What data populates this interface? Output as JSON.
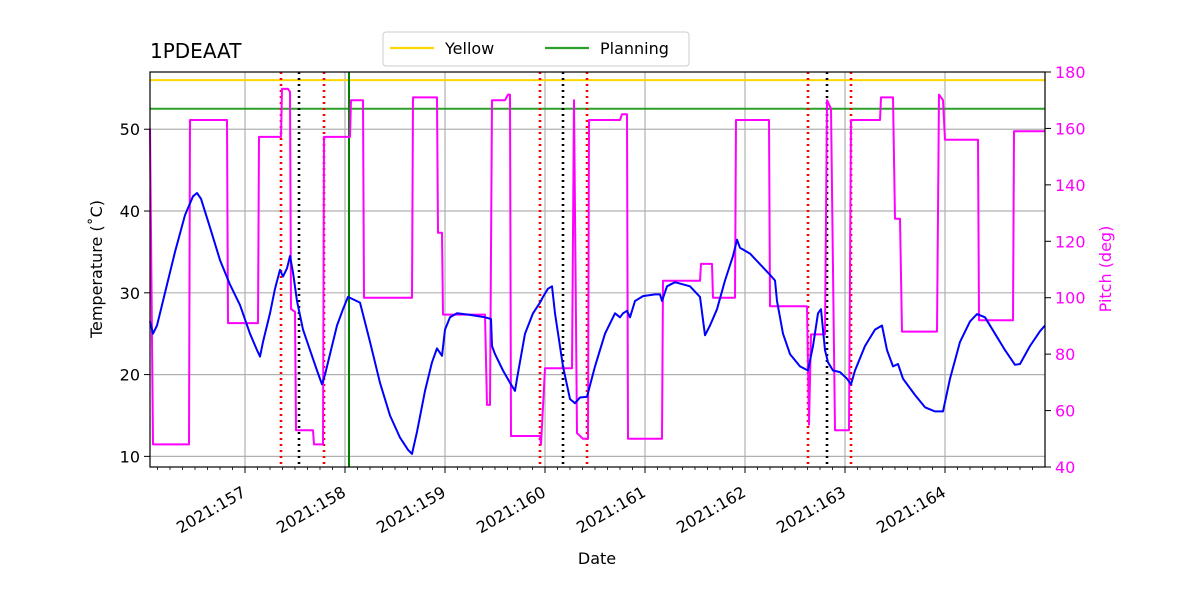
{
  "chart_data": {
    "type": "line",
    "title": "1PDEAAT",
    "xlabel": "Date",
    "ylabel_left": "Temperature ($^\\circ$C)",
    "ylabel_left_display": "Temperature (˚C)",
    "ylabel_right": "Pitch (deg)",
    "xlim": [
      156.05,
      165.0
    ],
    "ylim_left": [
      8.7,
      57.0
    ],
    "ylim_right": [
      40,
      180
    ],
    "grid": true,
    "legend_placement": "top-center",
    "x_ticks": [
      157,
      158,
      159,
      160,
      161,
      162,
      163,
      164
    ],
    "x_tick_labels": [
      "2021:157",
      "2021:158",
      "2021:159",
      "2021:160",
      "2021:161",
      "2021:162",
      "2021:163",
      "2021:164"
    ],
    "y_left_ticks": [
      10,
      20,
      30,
      40,
      50
    ],
    "y_left_tick_labels": [
      "10",
      "20",
      "30",
      "40",
      "50"
    ],
    "y_right_ticks": [
      40,
      60,
      80,
      100,
      120,
      140,
      160,
      180
    ],
    "y_right_tick_labels": [
      "40",
      "60",
      "80",
      "100",
      "120",
      "140",
      "160",
      "180"
    ],
    "legend": [
      {
        "label": "Yellow",
        "color": "#ffd700"
      },
      {
        "label": "Planning",
        "color": "#2ca02c"
      }
    ],
    "limits": [
      {
        "value": 56.0,
        "color": "#ffd700"
      },
      {
        "value": 52.5,
        "color": "#2ca02c"
      }
    ],
    "temperature_series": {
      "color": "#0000ff",
      "points": [
        [
          156.05,
          26.5
        ],
        [
          156.08,
          25.0
        ],
        [
          156.12,
          26.0
        ],
        [
          156.2,
          30.0
        ],
        [
          156.3,
          35.0
        ],
        [
          156.4,
          39.5
        ],
        [
          156.48,
          41.8
        ],
        [
          156.52,
          42.2
        ],
        [
          156.56,
          41.5
        ],
        [
          156.65,
          38.0
        ],
        [
          156.75,
          34.0
        ],
        [
          156.85,
          31.0
        ],
        [
          156.95,
          28.5
        ],
        [
          157.05,
          25.0
        ],
        [
          157.12,
          23.0
        ],
        [
          157.15,
          22.2
        ],
        [
          157.18,
          24.0
        ],
        [
          157.25,
          27.5
        ],
        [
          157.3,
          30.5
        ],
        [
          157.35,
          32.8
        ],
        [
          157.38,
          32.0
        ],
        [
          157.42,
          33.0
        ],
        [
          157.45,
          34.5
        ],
        [
          157.48,
          32.5
        ],
        [
          157.52,
          29.0
        ],
        [
          157.58,
          25.5
        ],
        [
          157.65,
          23.0
        ],
        [
          157.72,
          20.5
        ],
        [
          157.77,
          18.8
        ],
        [
          157.8,
          20.0
        ],
        [
          157.85,
          22.5
        ],
        [
          157.92,
          26.0
        ],
        [
          157.98,
          28.0
        ],
        [
          158.03,
          29.5
        ],
        [
          158.15,
          28.8
        ],
        [
          158.25,
          24.0
        ],
        [
          158.35,
          19.0
        ],
        [
          158.45,
          15.0
        ],
        [
          158.55,
          12.3
        ],
        [
          158.63,
          10.8
        ],
        [
          158.67,
          10.3
        ],
        [
          158.72,
          13.0
        ],
        [
          158.8,
          18.0
        ],
        [
          158.87,
          21.5
        ],
        [
          158.92,
          23.2
        ],
        [
          158.97,
          22.3
        ],
        [
          159.0,
          25.5
        ],
        [
          159.05,
          27.0
        ],
        [
          159.12,
          27.5
        ],
        [
          159.25,
          27.3
        ],
        [
          159.4,
          27.0
        ],
        [
          159.46,
          26.8
        ],
        [
          159.47,
          23.5
        ],
        [
          159.5,
          22.5
        ],
        [
          159.58,
          20.5
        ],
        [
          159.65,
          19.0
        ],
        [
          159.7,
          18.0
        ],
        [
          159.72,
          19.5
        ],
        [
          159.8,
          25.0
        ],
        [
          159.88,
          27.5
        ],
        [
          159.95,
          28.8
        ],
        [
          159.98,
          29.5
        ],
        [
          160.03,
          30.5
        ],
        [
          160.07,
          30.8
        ],
        [
          160.1,
          27.5
        ],
        [
          160.18,
          21.0
        ],
        [
          160.25,
          17.0
        ],
        [
          160.3,
          16.5
        ],
        [
          160.35,
          17.2
        ],
        [
          160.42,
          17.3
        ],
        [
          160.5,
          21.0
        ],
        [
          160.6,
          25.0
        ],
        [
          160.7,
          27.5
        ],
        [
          160.75,
          27.0
        ],
        [
          160.78,
          27.5
        ],
        [
          160.82,
          27.8
        ],
        [
          160.85,
          27.0
        ],
        [
          160.9,
          29.0
        ],
        [
          160.98,
          29.6
        ],
        [
          161.1,
          29.8
        ],
        [
          161.15,
          29.8
        ],
        [
          161.17,
          29.0
        ],
        [
          161.22,
          30.8
        ],
        [
          161.3,
          31.3
        ],
        [
          161.45,
          30.8
        ],
        [
          161.55,
          29.5
        ],
        [
          161.6,
          24.8
        ],
        [
          161.65,
          26.0
        ],
        [
          161.72,
          28.0
        ],
        [
          161.8,
          31.5
        ],
        [
          161.88,
          34.5
        ],
        [
          161.92,
          36.5
        ],
        [
          161.95,
          35.5
        ],
        [
          162.05,
          34.8
        ],
        [
          162.15,
          33.5
        ],
        [
          162.25,
          32.2
        ],
        [
          162.3,
          31.5
        ],
        [
          162.32,
          29.0
        ],
        [
          162.38,
          25.0
        ],
        [
          162.45,
          22.5
        ],
        [
          162.55,
          21.0
        ],
        [
          162.63,
          20.5
        ],
        [
          162.68,
          23.5
        ],
        [
          162.73,
          27.5
        ],
        [
          162.76,
          28.0
        ],
        [
          162.8,
          23.0
        ],
        [
          162.83,
          21.5
        ],
        [
          162.88,
          20.5
        ],
        [
          162.95,
          20.3
        ],
        [
          163.02,
          19.5
        ],
        [
          163.06,
          18.8
        ],
        [
          163.1,
          20.5
        ],
        [
          163.2,
          23.5
        ],
        [
          163.3,
          25.5
        ],
        [
          163.37,
          26.0
        ],
        [
          163.42,
          23.0
        ],
        [
          163.48,
          21.0
        ],
        [
          163.53,
          21.3
        ],
        [
          163.58,
          19.5
        ],
        [
          163.7,
          17.5
        ],
        [
          163.8,
          16.0
        ],
        [
          163.9,
          15.5
        ],
        [
          163.98,
          15.5
        ],
        [
          164.05,
          19.5
        ],
        [
          164.15,
          24.0
        ],
        [
          164.25,
          26.5
        ],
        [
          164.32,
          27.4
        ],
        [
          164.4,
          27.0
        ],
        [
          164.5,
          25.0
        ],
        [
          164.6,
          23.0
        ],
        [
          164.7,
          21.2
        ],
        [
          164.75,
          21.3
        ],
        [
          164.85,
          23.5
        ],
        [
          164.95,
          25.3
        ],
        [
          165.0,
          26.0
        ]
      ]
    },
    "pitch_series": {
      "color": "#ff00ff",
      "points": [
        [
          156.05,
          160
        ],
        [
          156.08,
          48
        ],
        [
          156.44,
          48
        ],
        [
          156.45,
          163
        ],
        [
          156.82,
          163
        ],
        [
          156.83,
          91
        ],
        [
          157.13,
          91
        ],
        [
          157.14,
          157
        ],
        [
          157.36,
          157
        ],
        [
          157.37,
          174
        ],
        [
          157.42,
          174
        ],
        [
          157.43,
          174
        ],
        [
          157.45,
          173
        ],
        [
          157.46,
          96
        ],
        [
          157.5,
          95
        ],
        [
          157.51,
          53
        ],
        [
          157.68,
          53
        ],
        [
          157.69,
          48
        ],
        [
          157.78,
          48
        ],
        [
          157.79,
          157
        ],
        [
          158.05,
          157
        ],
        [
          158.06,
          170
        ],
        [
          158.18,
          170
        ],
        [
          158.19,
          100
        ],
        [
          158.67,
          100
        ],
        [
          158.68,
          171
        ],
        [
          158.92,
          171
        ],
        [
          158.93,
          123
        ],
        [
          158.97,
          123
        ],
        [
          158.98,
          94
        ],
        [
          159.4,
          94
        ],
        [
          159.42,
          62
        ],
        [
          159.45,
          62
        ],
        [
          159.47,
          170
        ],
        [
          159.6,
          170
        ],
        [
          159.63,
          172
        ],
        [
          159.65,
          172
        ],
        [
          159.66,
          51
        ],
        [
          159.95,
          51
        ],
        [
          159.96,
          48
        ],
        [
          160.0,
          75
        ],
        [
          160.27,
          75
        ],
        [
          160.29,
          170
        ],
        [
          160.32,
          52
        ],
        [
          160.38,
          50
        ],
        [
          160.43,
          50
        ],
        [
          160.44,
          163
        ],
        [
          160.75,
          163
        ],
        [
          160.77,
          165
        ],
        [
          160.82,
          165
        ],
        [
          160.83,
          50
        ],
        [
          161.17,
          50
        ],
        [
          161.18,
          106
        ],
        [
          161.55,
          106
        ],
        [
          161.56,
          112
        ],
        [
          161.67,
          112
        ],
        [
          161.68,
          100
        ],
        [
          161.9,
          100
        ],
        [
          161.91,
          163
        ],
        [
          162.24,
          163
        ],
        [
          162.25,
          97
        ],
        [
          162.62,
          97
        ],
        [
          162.64,
          55
        ],
        [
          162.66,
          87
        ],
        [
          162.8,
          87
        ],
        [
          162.82,
          170
        ],
        [
          162.86,
          167
        ],
        [
          162.9,
          53
        ],
        [
          163.04,
          53
        ],
        [
          163.06,
          163
        ],
        [
          163.35,
          163
        ],
        [
          163.36,
          171
        ],
        [
          163.48,
          171
        ],
        [
          163.5,
          128
        ],
        [
          163.55,
          128
        ],
        [
          163.57,
          88
        ],
        [
          163.92,
          88
        ],
        [
          163.94,
          172
        ],
        [
          163.98,
          170
        ],
        [
          164.0,
          156
        ],
        [
          164.33,
          156
        ],
        [
          164.34,
          92
        ],
        [
          164.68,
          92
        ],
        [
          164.69,
          159
        ],
        [
          165.0,
          159
        ]
      ]
    },
    "vertical_markers": [
      {
        "x": 157.36,
        "color": "#ff0000",
        "style": "dotted"
      },
      {
        "x": 157.54,
        "color": "#000000",
        "style": "dotted"
      },
      {
        "x": 157.79,
        "color": "#ff0000",
        "style": "dotted"
      },
      {
        "x": 158.04,
        "color": "#008000",
        "style": "solid"
      },
      {
        "x": 159.95,
        "color": "#ff0000",
        "style": "dotted"
      },
      {
        "x": 160.18,
        "color": "#000000",
        "style": "dotted"
      },
      {
        "x": 160.42,
        "color": "#ff0000",
        "style": "dotted"
      },
      {
        "x": 162.63,
        "color": "#ff0000",
        "style": "dotted"
      },
      {
        "x": 162.82,
        "color": "#000000",
        "style": "dotted"
      },
      {
        "x": 163.06,
        "color": "#ff0000",
        "style": "dotted"
      }
    ]
  }
}
